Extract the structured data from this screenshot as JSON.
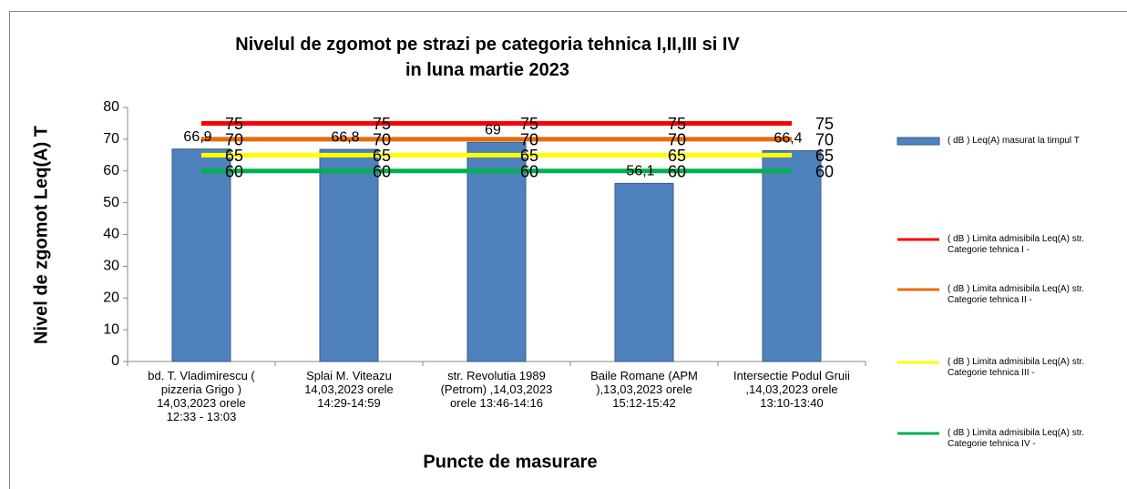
{
  "chart_data": {
    "type": "bar",
    "title": "Nivelul de  zgomot pe strazi pe categoria tehnica I,II,III  si IV\nin luna martie 2023",
    "x_label": "Puncte de masurare",
    "y_label": "Nivel de zgomot  Leq(A) T",
    "categories": [
      "bd. T. Vladimirescu (\npizzeria Grigo )\n14,03,2023 orele\n12:33 - 13:03",
      "Splai M. Viteazu\n14,03,2023 orele\n14:29-14:59",
      "str. Revolutia 1989\n(Petrom) ,14,03,2023\norele 13:46-14:16",
      "Baile Romane (APM\n),13,03,2023 orele\n15:12-15:42",
      "Intersectie Podul Gruii\n,14,03,2023 orele\n13:10-13:40"
    ],
    "series": [
      {
        "name": "( dB ) Leq(A)  masurat la timpul T",
        "type": "bar",
        "color": "#4f81bd",
        "values": [
          66.9,
          66.8,
          69,
          56.1,
          66.4
        ],
        "value_labels": [
          "66,9",
          "66,8",
          "69",
          "56,1",
          "66,4"
        ]
      },
      {
        "name": "( dB ) Limita  admisibila Leq(A) str. Categorie tehnica I -",
        "type": "line",
        "color": "#ff0000",
        "values": [
          75,
          75,
          75,
          75,
          75
        ]
      },
      {
        "name": "( dB ) Limita  admisibila Leq(A) str. Categorie tehnica II -",
        "type": "line",
        "color": "#e46c0a",
        "values": [
          70,
          70,
          70,
          70,
          70
        ]
      },
      {
        "name": "( dB ) Limita  admisibila Leq(A) str. Categorie tehnica III -",
        "type": "line",
        "color": "#ffff00",
        "values": [
          65,
          65,
          65,
          65,
          65
        ]
      },
      {
        "name": "( dB ) Limita  admisibila Leq(A) str. Categorie tehnica IV -",
        "type": "line",
        "color": "#00b050",
        "values": [
          60,
          60,
          60,
          60,
          60
        ]
      }
    ],
    "ylim": [
      0,
      80
    ],
    "yticks": [
      0,
      10,
      20,
      30,
      40,
      50,
      60,
      70,
      80
    ],
    "grid": false,
    "legend": "right"
  }
}
